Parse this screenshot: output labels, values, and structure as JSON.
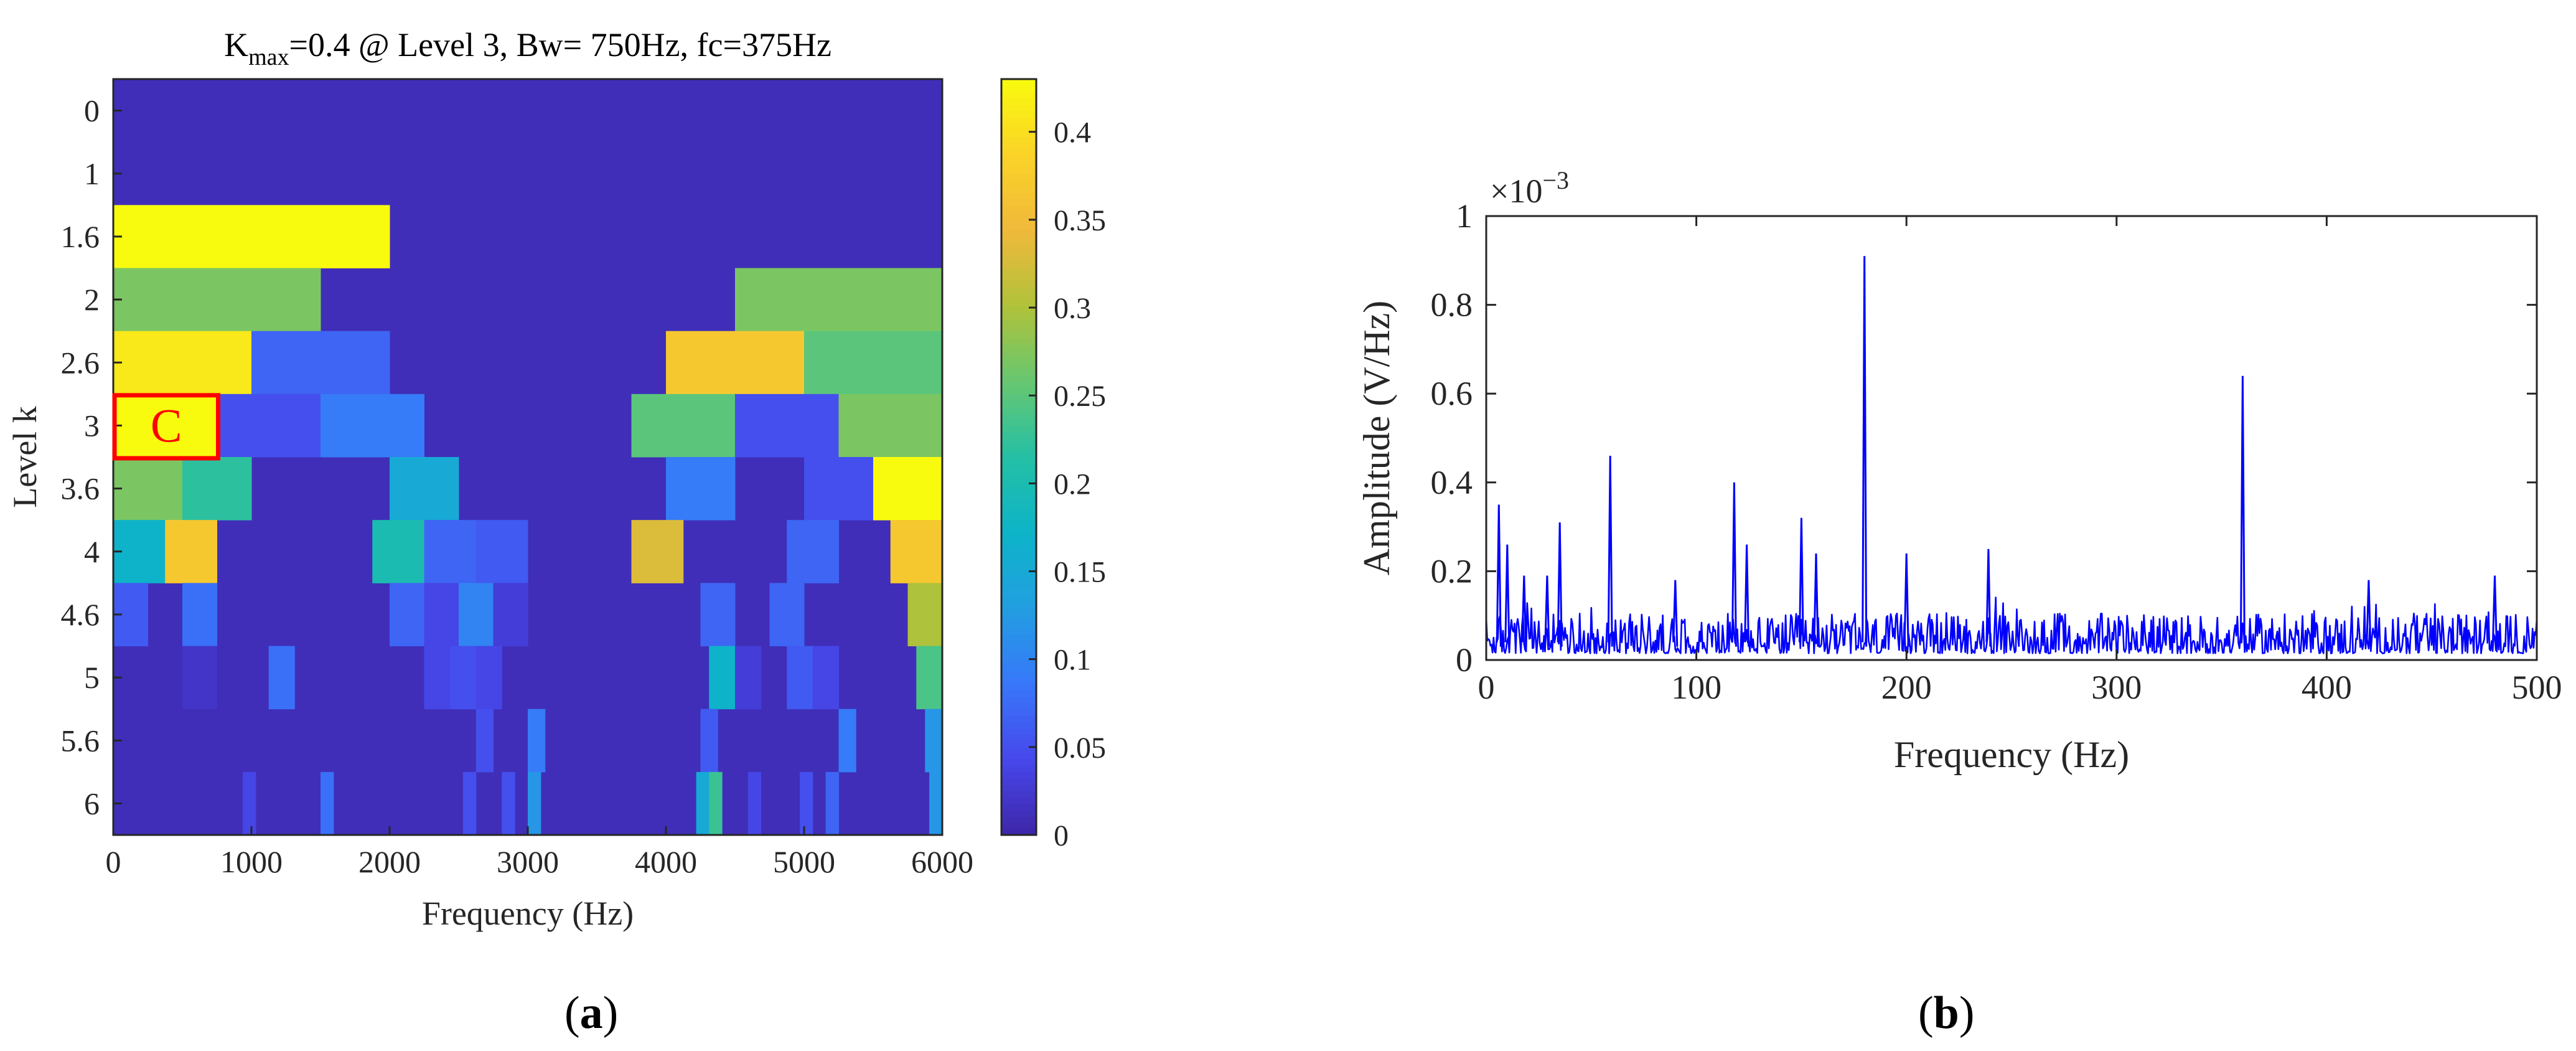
{
  "chart_data": [
    {
      "type": "heatmap",
      "panel_label": "a",
      "title": {
        "prefix": "K",
        "subscript": "max",
        "suffix": "=0.4 @ Level 3, Bw= 750Hz, fc=375Hz"
      },
      "xlabel": "Frequency (Hz)",
      "ylabel": "Level k",
      "xlim": [
        0,
        6000
      ],
      "x_ticks": [
        "0",
        "1000",
        "2000",
        "3000",
        "4000",
        "5000",
        "6000"
      ],
      "levels": [
        "0",
        "1",
        "1.6",
        "2",
        "2.6",
        "3",
        "3.6",
        "4",
        "4.6",
        "5",
        "5.6",
        "6"
      ],
      "colorbar": {
        "min": 0,
        "max": 0.43,
        "ticks": [
          "0",
          "0.05",
          "0.1",
          "0.15",
          "0.2",
          "0.25",
          "0.3",
          "0.35",
          "0.4"
        ]
      },
      "background_value": 0.01,
      "rows": [
        {
          "level": "0",
          "segments": []
        },
        {
          "level": "1",
          "segments": []
        },
        {
          "level": "1.6",
          "segments": [
            [
              0,
              2000,
              0.43
            ]
          ]
        },
        {
          "level": "2",
          "segments": [
            [
              0,
              1500,
              0.27
            ],
            [
              4500,
              6000,
              0.27
            ]
          ]
        },
        {
          "level": "2.6",
          "segments": [
            [
              0,
              1000,
              0.41
            ],
            [
              1000,
              2000,
              0.07
            ],
            [
              4000,
              5000,
              0.37
            ],
            [
              5000,
              6000,
              0.25
            ]
          ]
        },
        {
          "level": "3",
          "segments": [
            [
              0,
              750,
              0.43
            ],
            [
              750,
              1500,
              0.05
            ],
            [
              1500,
              2250,
              0.09
            ],
            [
              3750,
              4500,
              0.25
            ],
            [
              4500,
              5250,
              0.05
            ],
            [
              5250,
              6000,
              0.27
            ]
          ]
        },
        {
          "level": "3.6",
          "segments": [
            [
              0,
              500,
              0.27
            ],
            [
              500,
              1000,
              0.22
            ],
            [
              2000,
              2500,
              0.15
            ],
            [
              4000,
              4500,
              0.09
            ],
            [
              5000,
              5500,
              0.05
            ],
            [
              5500,
              6000,
              0.43
            ]
          ]
        },
        {
          "level": "4",
          "segments": [
            [
              0,
              375,
              0.17
            ],
            [
              375,
              750,
              0.37
            ],
            [
              1875,
              2250,
              0.2
            ],
            [
              2250,
              2625,
              0.07
            ],
            [
              2625,
              3000,
              0.06
            ],
            [
              3750,
              4125,
              0.33
            ],
            [
              4875,
              5250,
              0.07
            ],
            [
              5625,
              6000,
              0.37
            ]
          ]
        },
        {
          "level": "4.6",
          "segments": [
            [
              0,
              250,
              0.06
            ],
            [
              500,
              750,
              0.08
            ],
            [
              2000,
              2250,
              0.07
            ],
            [
              2250,
              2500,
              0.04
            ],
            [
              2500,
              2750,
              0.1
            ],
            [
              2750,
              3000,
              0.03
            ],
            [
              4250,
              4500,
              0.07
            ],
            [
              4750,
              5000,
              0.07
            ],
            [
              5750,
              6000,
              0.3
            ]
          ]
        },
        {
          "level": "5",
          "segments": [
            [
              500,
              750,
              0.02
            ],
            [
              1125,
              1312,
              0.08
            ],
            [
              2250,
              2437,
              0.04
            ],
            [
              2437,
              2625,
              0.05
            ],
            [
              2625,
              2812,
              0.04
            ],
            [
              4312,
              4500,
              0.17
            ],
            [
              4500,
              4687,
              0.03
            ],
            [
              4875,
              5062,
              0.06
            ],
            [
              5062,
              5250,
              0.04
            ],
            [
              5812,
              6000,
              0.24
            ]
          ]
        },
        {
          "level": "5.6",
          "segments": [
            [
              2625,
              2750,
              0.05
            ],
            [
              3000,
              3125,
              0.09
            ],
            [
              4250,
              4375,
              0.06
            ],
            [
              5250,
              5375,
              0.09
            ],
            [
              5875,
              6000,
              0.12
            ]
          ]
        },
        {
          "level": "6",
          "segments": [
            [
              937,
              1031,
              0.04
            ],
            [
              1500,
              1594,
              0.08
            ],
            [
              2531,
              2625,
              0.05
            ],
            [
              2812,
              2906,
              0.05
            ],
            [
              3000,
              3094,
              0.12
            ],
            [
              4219,
              4312,
              0.15
            ],
            [
              4312,
              4406,
              0.23
            ],
            [
              4594,
              4687,
              0.04
            ],
            [
              4969,
              5062,
              0.05
            ],
            [
              5156,
              5250,
              0.07
            ],
            [
              5906,
              6000,
              0.12
            ]
          ]
        }
      ],
      "annotation": {
        "text": "C",
        "level": "3",
        "x_range": [
          0,
          750
        ],
        "color": "#ff0000"
      }
    },
    {
      "type": "line",
      "panel_label": "b",
      "xlabel": "Frequency (Hz)",
      "ylabel": "Amplitude (V/Hz)",
      "xlim": [
        0,
        500
      ],
      "ylim": [
        0,
        1
      ],
      "x_ticks": [
        "0",
        "100",
        "200",
        "300",
        "400",
        "500"
      ],
      "y_ticks": [
        "0",
        "0.2",
        "0.4",
        "0.6",
        "0.8",
        "1"
      ],
      "y_multiplier": {
        "base": "×10",
        "exponent": "−3"
      },
      "line_color": "#0000ff",
      "sample_count": 1000,
      "noise_level": 0.06,
      "peaks": [
        {
          "x": 6,
          "y": 0.35
        },
        {
          "x": 10,
          "y": 0.26
        },
        {
          "x": 18,
          "y": 0.19
        },
        {
          "x": 29,
          "y": 0.19
        },
        {
          "x": 35,
          "y": 0.31
        },
        {
          "x": 59,
          "y": 0.46
        },
        {
          "x": 90,
          "y": 0.18
        },
        {
          "x": 118,
          "y": 0.4
        },
        {
          "x": 124,
          "y": 0.26
        },
        {
          "x": 150,
          "y": 0.32
        },
        {
          "x": 157,
          "y": 0.24
        },
        {
          "x": 180,
          "y": 0.91
        },
        {
          "x": 200,
          "y": 0.24
        },
        {
          "x": 239,
          "y": 0.25
        },
        {
          "x": 360,
          "y": 0.64
        },
        {
          "x": 420,
          "y": 0.18
        },
        {
          "x": 480,
          "y": 0.19
        }
      ]
    }
  ]
}
